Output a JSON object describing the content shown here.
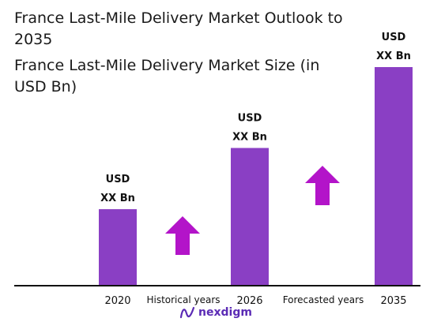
{
  "header": {
    "title": "France Last-Mile Delivery Market Outlook to 2035",
    "subtitle": "France Last-Mile Delivery Market Size (in USD Bn)"
  },
  "chart_data": {
    "type": "bar",
    "categories": [
      "2020",
      "2026",
      "2035"
    ],
    "values": [
      35,
      63,
      100
    ],
    "ylim": [
      0,
      100
    ],
    "data_labels": [
      [
        "USD",
        "XX Bn"
      ],
      [
        "USD",
        "XX Bn"
      ],
      [
        "USD",
        "XX Bn"
      ]
    ],
    "annotations": [
      "Historical years",
      "Forecasted years"
    ],
    "bar_color": "#8a3fc4",
    "arrow_color": "#b314c9",
    "axis_color": "#111111",
    "grid": false,
    "legend": "none"
  },
  "footer": {
    "logo_text": "nexdigm",
    "logo_icon": "nexdigm-logo-icon",
    "brand_color": "#5b2bb5"
  }
}
